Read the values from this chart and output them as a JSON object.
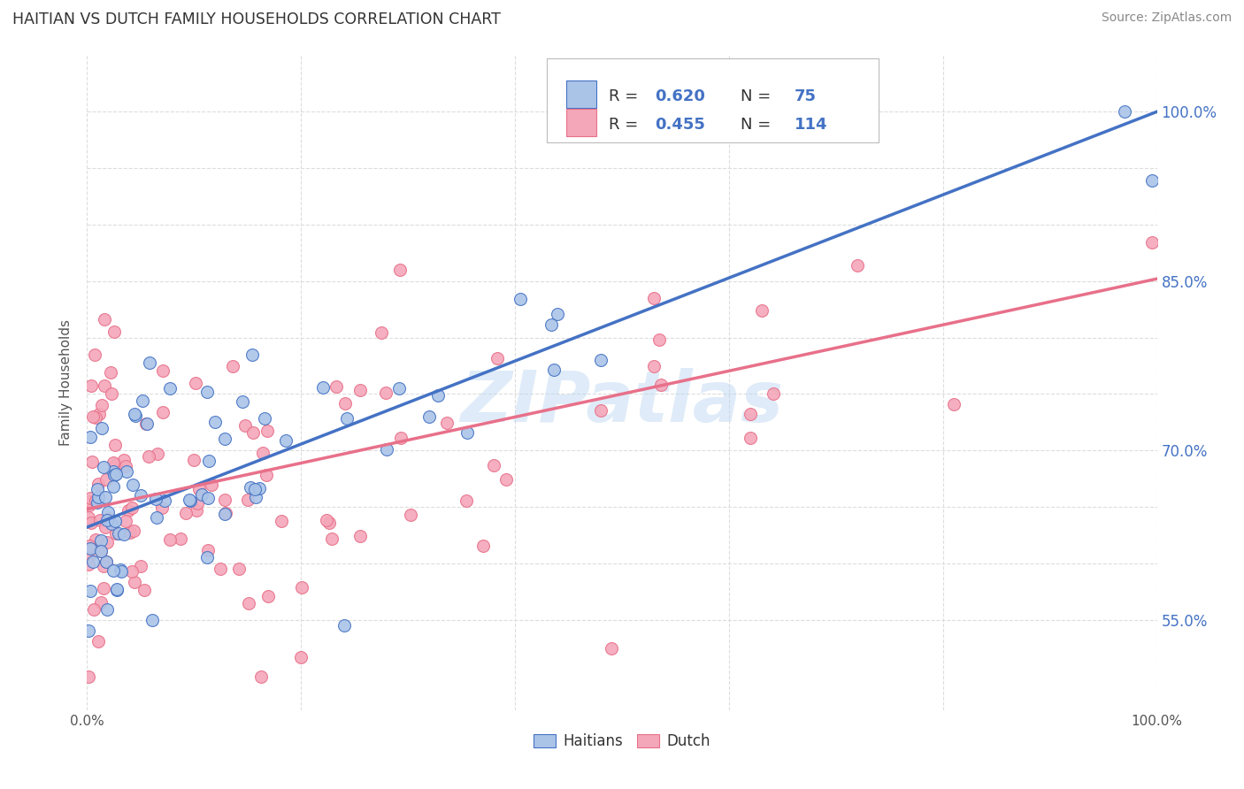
{
  "title": "HAITIAN VS DUTCH FAMILY HOUSEHOLDS CORRELATION CHART",
  "source": "Source: ZipAtlas.com",
  "ylabel": "Family Households",
  "watermark": "ZIPatlas",
  "xmin": 0.0,
  "xmax": 1.0,
  "ymin": 0.47,
  "ymax": 1.05,
  "right_ytick_labels": [
    "55.0%",
    "70.0%",
    "85.0%",
    "100.0%"
  ],
  "right_ytick_positions": [
    0.55,
    0.7,
    0.85,
    1.0
  ],
  "haitian_color": "#aac4e8",
  "dutch_color": "#f4a7b9",
  "haitian_line_color": "#4472c4",
  "dutch_line_color": "#e8708a",
  "haitian_R": 0.62,
  "dutch_R": 0.455,
  "haitian_N": 75,
  "dutch_N": 114,
  "haitian_line_start_y": 0.632,
  "haitian_line_end_y": 1.0,
  "dutch_line_start_y": 0.648,
  "dutch_line_end_y": 0.852,
  "background_color": "#ffffff",
  "grid_color": "#dddddd",
  "title_color": "#333333",
  "right_label_color": "#4472c4"
}
